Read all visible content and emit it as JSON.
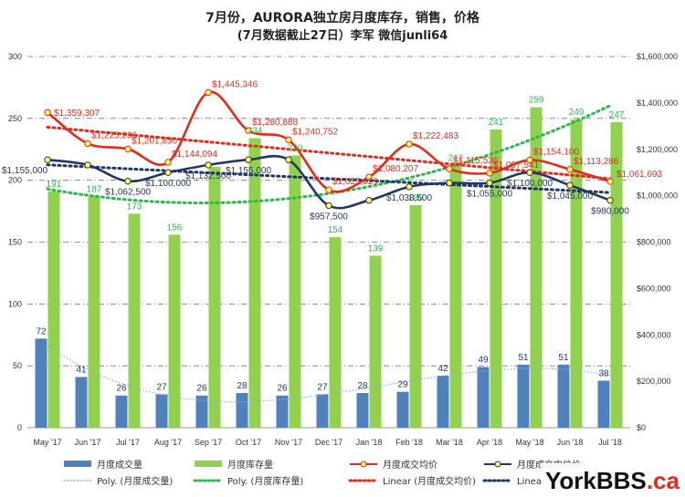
{
  "chart_data": {
    "type": "bar",
    "title": "7月份，AURORA独立房月度库存，销售，价格",
    "subtitle": "(7月数据截止27日）李军 微信junli64",
    "categories": [
      "May '17",
      "Jun '17",
      "Jul '17",
      "Aug '17",
      "Sep '17",
      "Oct '17",
      "Nov '17",
      "Dec '17",
      "Jan '18",
      "Feb '18",
      "Mar '18",
      "Apr '18",
      "May '18",
      "Jun '18",
      "Jul '18"
    ],
    "series": [
      {
        "name": "月度成交量",
        "type": "bar",
        "axis": "left",
        "color": "#4f81bd",
        "values": [
          72,
          41,
          26,
          27,
          26,
          28,
          26,
          27,
          28,
          29,
          42,
          49,
          51,
          51,
          38
        ]
      },
      {
        "name": "月度库存量",
        "type": "bar",
        "axis": "left",
        "color": "#92d050",
        "values": [
          191,
          187,
          173,
          156,
          211,
          234,
          220,
          154,
          139,
          180,
          212,
          241,
          259,
          249,
          247
        ]
      },
      {
        "name": "月度成交均价",
        "type": "line",
        "axis": "right",
        "color": "#e32b1c",
        "values": [
          1359307,
          1225236,
          1201830,
          1144094,
          1445346,
          1280888,
          1240752,
          1025329,
          1080207,
          1222483,
          1115536,
          1097541,
          1154100,
          1113286,
          1061693
        ]
      },
      {
        "name": "月度成交中位价",
        "type": "line",
        "axis": "right",
        "color": "#1f3864",
        "values": [
          1155000,
          1132500,
          1062500,
          1100000,
          1132500,
          1155000,
          1155000,
          957500,
          980000,
          1038500,
          1055000,
          1055000,
          1100000,
          1045000,
          980000
        ]
      },
      {
        "name": "Poly. (月度成交量)",
        "type": "trend",
        "color": "#8eaadb"
      },
      {
        "name": "Poly. (月度库存量)",
        "type": "trend",
        "color": "#2eb84b"
      },
      {
        "name": "Linear (月度成交均价)",
        "type": "trend",
        "color": "#e32b1c"
      },
      {
        "name": "Linear (月度成交中位价)",
        "type": "trend",
        "color": "#1f3864"
      }
    ],
    "volume_labels": [
      "72",
      "41",
      "26",
      "27",
      "26",
      "28",
      "26",
      "27",
      "28",
      "29",
      "42",
      "49",
      "51",
      "51",
      "38"
    ],
    "inventory_labels": [
      "191",
      "187",
      "173",
      "156",
      "",
      "234",
      "220",
      "154",
      "139",
      "180",
      "212",
      "241",
      "259",
      "249",
      "247"
    ],
    "avg_price_labels": [
      "$1,359,307",
      "$1,225,236",
      "$1,201,830",
      "$1,144,094",
      "$1,445,346",
      "$1,280,888",
      "$1,240,752",
      "$1,025,329",
      "$1,080,207",
      "$1,222,483",
      "$1,115,536",
      "$1,097,541",
      "$1,154,100",
      "$1,113,286",
      "$1,061,693"
    ],
    "median_price_labels": [
      "$1,155,000",
      "",
      "$1,062,500",
      "$1,100,000",
      "$1,132,500",
      "$1,155,000",
      "",
      "$957,500",
      "",
      "$1,038,500",
      "",
      "$1,055,000",
      "$1,100,000",
      "$1,045,000",
      "$980,000"
    ],
    "left_axis": {
      "min": 0,
      "max": 300,
      "step": 50,
      "ticks": [
        "0",
        "50",
        "100",
        "150",
        "200",
        "250",
        "300"
      ]
    },
    "right_axis": {
      "min": 0,
      "max": 1600000,
      "step": 200000,
      "ticks": [
        "$0",
        "$200,000",
        "$400,000",
        "$600,000",
        "$800,000",
        "$1,000,000",
        "$1,200,000",
        "$1,400,000",
        "$1,600,000"
      ]
    },
    "grid": true,
    "legend_position": "bottom"
  },
  "watermark": {
    "text": "YorkBBS.ca",
    "accent": "#e8261b"
  }
}
